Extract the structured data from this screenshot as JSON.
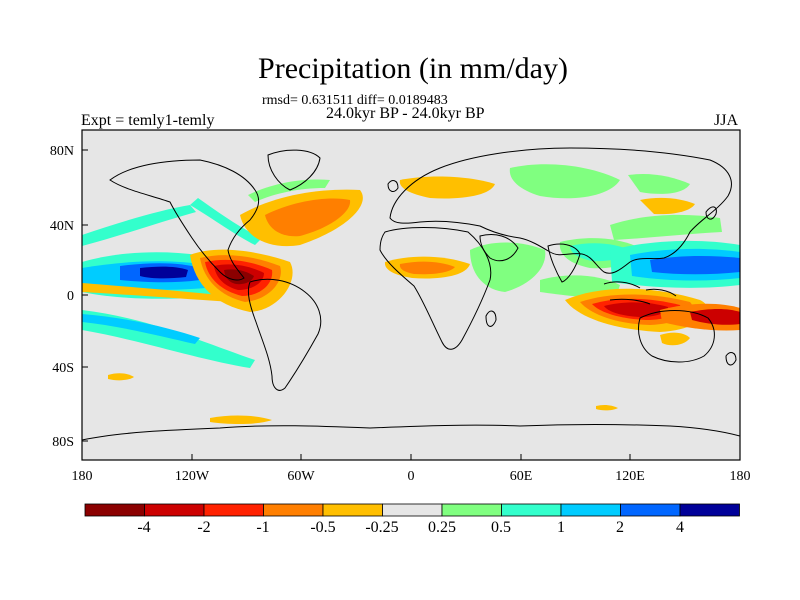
{
  "header": {
    "title": "Precipitation (in mm/day)",
    "stats": "rmsd= 0.631511 diff= 0.0189483",
    "period": "24.0kyr BP - 24.0kyr BP",
    "expt": "Expt = temly1-temly",
    "season": "JJA"
  },
  "axes": {
    "lat_labels": [
      "80N",
      "40N",
      "0",
      "40S",
      "80S"
    ],
    "lon_labels": [
      "180",
      "120W",
      "60W",
      "0",
      "60E",
      "120E",
      "180"
    ]
  },
  "colorbar": {
    "colors": [
      "#8b0000",
      "#cc0000",
      "#ff2200",
      "#ff7f00",
      "#ffbf00",
      "#e6e6e6",
      "#80ff80",
      "#33ffcc",
      "#00ccff",
      "#0066ff",
      "#000099"
    ],
    "labels": [
      "-4",
      "-2",
      "-1",
      "-0.5",
      "-0.25",
      "0.25",
      "0.5",
      "1",
      "2",
      "4"
    ]
  },
  "colors": {
    "background": "#e6e6e6",
    "coast": "#000000"
  }
}
